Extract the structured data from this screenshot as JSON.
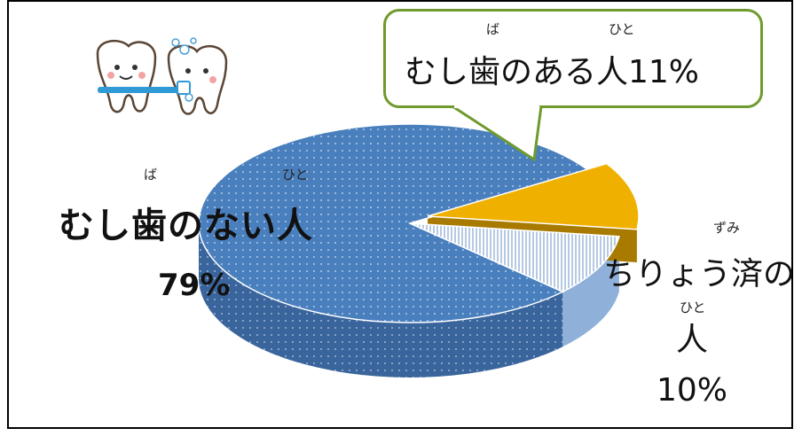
{
  "chart_data": {
    "type": "pie",
    "slices": [
      {
        "label": "むし歯のない人",
        "value": 79,
        "color": "#4a7fbe"
      },
      {
        "label": "むし歯のある人",
        "value": 11,
        "color": "#f0b000"
      },
      {
        "label": "ちりょう済の人",
        "value": 10,
        "color": "#ffffff"
      }
    ]
  },
  "labels": {
    "no_cavity": {
      "ruby_ba": "ば",
      "ruby_hito": "ひと",
      "text": "むし歯のない人",
      "pct": "79%"
    },
    "cavity": {
      "ruby_ba": "ば",
      "ruby_hito": "ひと",
      "text": "むし歯のある人11%"
    },
    "treated": {
      "ruby_zumi": "ずみ",
      "text": "ちりょう済の",
      "ruby_hito": "ひと",
      "text2": "人",
      "pct": "10%"
    }
  },
  "illustration": "teeth-brushing-icon"
}
